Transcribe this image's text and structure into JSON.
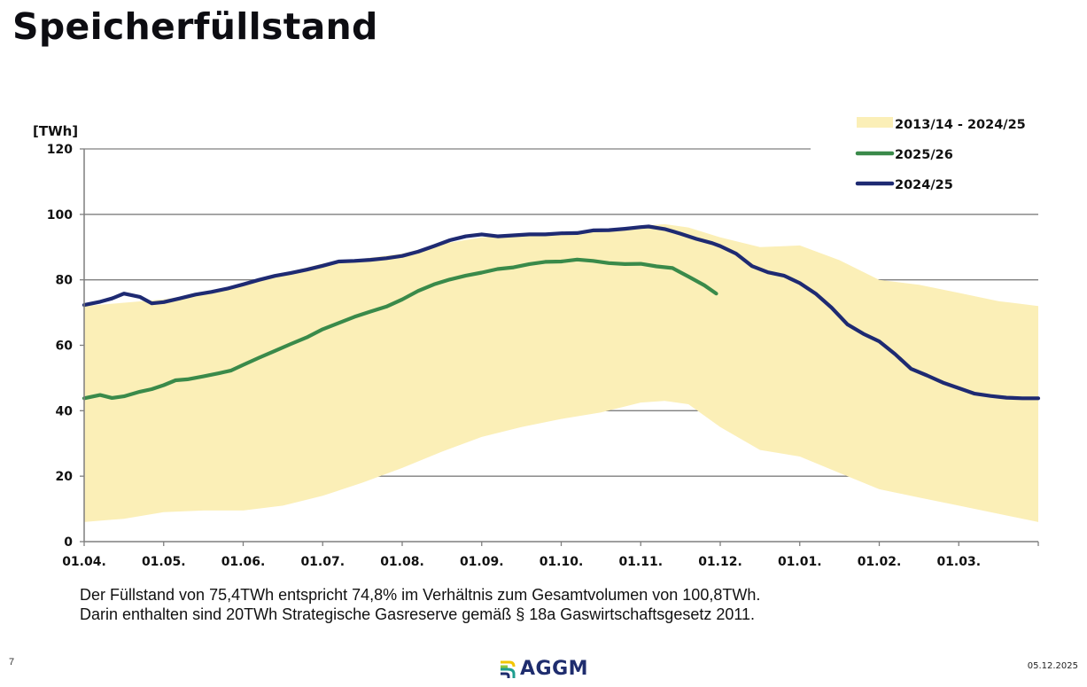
{
  "page": {
    "title": "Speicherfüllstand",
    "page_number": "7",
    "date": "05.12.2025",
    "logo_text": "AGGM",
    "note_lines": [
      "Der Füllstand von 75,4TWh entspricht 74,8% im Verhältnis zum Gesamtvolumen von 100,8TWh.",
      "Darin enthalten sind 20TWh Strategische Gasreserve gemäß § 18a Gaswirtschaftsgesetz 2011."
    ]
  },
  "chart_data": {
    "type": "line",
    "title": "Speicherfüllstand",
    "xlabel": "",
    "ylabel": "[TWh]",
    "ylim": [
      0,
      120
    ],
    "yticks": [
      0,
      20,
      40,
      60,
      80,
      100,
      120
    ],
    "grid": true,
    "legend_position": "top-right",
    "x_unit": "months since 01.04.",
    "xlim": [
      0,
      12
    ],
    "xtick_positions": [
      0,
      1,
      2,
      3,
      4,
      5,
      6,
      7,
      8,
      9,
      10,
      11
    ],
    "xtick_labels": [
      "01.04.",
      "01.05.",
      "01.06.",
      "01.07.",
      "01.08.",
      "01.09.",
      "01.10.",
      "01.11.",
      "01.12.",
      "01.01.",
      "01.02.",
      "01.03."
    ],
    "colors": {
      "band": "#fbefb7",
      "green": "#3a8a4a",
      "navy": "#1e2a72",
      "grid": "#7f7f7f"
    },
    "series": [
      {
        "name": "2013/14 - 2024/25",
        "kind": "band",
        "x": [
          0,
          0.5,
          1,
          1.5,
          2,
          2.5,
          3,
          3.5,
          4,
          4.5,
          5,
          5.5,
          6,
          6.5,
          7,
          7.3,
          7.6,
          8,
          8.5,
          9,
          9.5,
          10,
          10.5,
          11,
          11.5,
          12
        ],
        "upper": [
          72,
          73,
          74,
          76,
          79,
          82,
          85,
          86.5,
          88,
          91,
          93,
          93.5,
          94,
          95,
          96.5,
          97,
          96,
          93,
          90,
          90.5,
          86,
          80,
          78.5,
          76,
          73.5,
          72
        ],
        "lower": [
          6,
          7,
          9,
          9.5,
          9.5,
          11,
          14,
          18,
          22.5,
          27.5,
          32,
          35,
          37.5,
          39.5,
          42.5,
          43,
          42,
          35,
          28,
          26,
          21,
          16,
          13.5,
          11,
          8.5,
          6
        ]
      },
      {
        "name": "2025/26",
        "kind": "line",
        "x": [
          0,
          0.2,
          0.35,
          0.5,
          0.7,
          0.85,
          1,
          1.15,
          1.3,
          1.5,
          1.7,
          1.85,
          2,
          2.2,
          2.4,
          2.6,
          2.8,
          3,
          3.2,
          3.4,
          3.6,
          3.8,
          4,
          4.2,
          4.4,
          4.6,
          4.8,
          5,
          5.2,
          5.4,
          5.6,
          5.8,
          6,
          6.2,
          6.4,
          6.6,
          6.8,
          7,
          7.2,
          7.4,
          7.6,
          7.8,
          7.95
        ],
        "values": [
          43.8,
          44.8,
          43.9,
          44.4,
          45.8,
          46.6,
          47.8,
          49.3,
          49.6,
          50.5,
          51.5,
          52.3,
          54,
          56.2,
          58.3,
          60.4,
          62.4,
          64.9,
          66.8,
          68.7,
          70.3,
          71.8,
          74,
          76.6,
          78.6,
          80.1,
          81.3,
          82.2,
          83.3,
          83.8,
          84.8,
          85.5,
          85.6,
          86.2,
          85.8,
          85.1,
          84.8,
          84.9,
          84.1,
          83.6,
          81,
          78.3,
          75.8
        ]
      },
      {
        "name": "2024/25",
        "kind": "line",
        "x": [
          0,
          0.2,
          0.35,
          0.5,
          0.7,
          0.85,
          1,
          1.2,
          1.4,
          1.6,
          1.8,
          2,
          2.2,
          2.4,
          2.6,
          2.8,
          3,
          3.2,
          3.4,
          3.6,
          3.8,
          4,
          4.2,
          4.4,
          4.6,
          4.8,
          5,
          5.2,
          5.4,
          5.6,
          5.8,
          6,
          6.2,
          6.4,
          6.6,
          6.8,
          7,
          7.1,
          7.3,
          7.5,
          7.7,
          7.9,
          8,
          8.2,
          8.4,
          8.6,
          8.8,
          9,
          9.2,
          9.4,
          9.6,
          9.8,
          10,
          10.2,
          10.4,
          10.6,
          10.8,
          11,
          11.2,
          11.4,
          11.6,
          11.8,
          12
        ],
        "values": [
          72.3,
          73.3,
          74.3,
          75.8,
          74.8,
          72.8,
          73.2,
          74.3,
          75.5,
          76.3,
          77.3,
          78.6,
          80,
          81.2,
          82.1,
          83.1,
          84.3,
          85.6,
          85.8,
          86.1,
          86.6,
          87.3,
          88.6,
          90.3,
          92.1,
          93.3,
          93.9,
          93.3,
          93.6,
          93.9,
          93.9,
          94.2,
          94.3,
          95.1,
          95.2,
          95.6,
          96.1,
          96.3,
          95.5,
          94.1,
          92.5,
          91.2,
          90.3,
          88,
          84.2,
          82.3,
          81.3,
          79,
          75.8,
          71.5,
          66.4,
          63.5,
          61.2,
          57.3,
          52.8,
          50.8,
          48.6,
          46.9,
          45.2,
          44.5,
          44,
          43.8,
          43.8
        ]
      }
    ]
  }
}
